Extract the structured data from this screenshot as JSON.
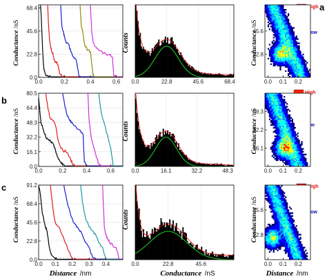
{
  "panel_labels": [
    "a",
    "b",
    "c"
  ],
  "axis_titles": {
    "conductance": "Conductance",
    "conductance_unit": "/nS",
    "counts": "Counts",
    "distance": "Distance",
    "distance_unit": "/nm"
  },
  "legend": {
    "high": "High",
    "low": "Low"
  },
  "colors": {
    "traces": [
      "#000000",
      "#e0191a",
      "#1b1bd0",
      "#8b8b00",
      "#d02ed6",
      "#1a9a9a"
    ],
    "fit": "#22c322",
    "envelope": "#e02020",
    "histogram": "#000000",
    "colormap": [
      "#00007f",
      "#0000ff",
      "#00a0ff",
      "#00ffff",
      "#7fff7f",
      "#ffff00",
      "#ff8000",
      "#ff0000",
      "#7f0000"
    ]
  },
  "chart_data": [
    {
      "id": "a-traces",
      "type": "line",
      "row": "a",
      "xlabel": "Distance /nm",
      "ylabel": "Conductance /nS",
      "xlim": [
        0,
        0.65
      ],
      "ylim": [
        0,
        71.4
      ],
      "xticks": [
        "0.0",
        "0.2",
        "0.4",
        "0.6"
      ],
      "xtick_values": [
        0,
        0.2,
        0.4,
        0.6
      ],
      "yticks": [
        "0.0",
        "22.8",
        "45.6",
        "68.4"
      ],
      "ytick_values": [
        0,
        22.8,
        45.6,
        68.4
      ],
      "series": [
        {
          "color": "#000000",
          "x": [
            0.015,
            0.02,
            0.025,
            0.03,
            0.035,
            0.04,
            0.05,
            0.06,
            0.08,
            0.1
          ],
          "y": [
            71,
            60,
            45,
            30,
            18,
            8,
            4,
            1.5,
            0.8,
            0.5
          ]
        },
        {
          "color": "#e0191a",
          "x": [
            0.07,
            0.075,
            0.08,
            0.085,
            0.09,
            0.1,
            0.11,
            0.12,
            0.13,
            0.14,
            0.15,
            0.16,
            0.18,
            0.2
          ],
          "y": [
            71,
            55,
            45,
            36,
            32,
            26,
            24,
            17,
            15,
            14,
            12,
            5,
            1,
            0.5
          ]
        },
        {
          "color": "#1b1bd0",
          "x": [
            0.17,
            0.18,
            0.19,
            0.2,
            0.21,
            0.23,
            0.25,
            0.27,
            0.29,
            0.31,
            0.33
          ],
          "y": [
            71,
            50,
            45,
            40,
            35,
            33,
            25,
            20,
            17,
            2,
            0.5
          ]
        },
        {
          "color": "#8b8b00",
          "x": [
            0.32,
            0.33,
            0.34,
            0.36,
            0.38,
            0.4,
            0.42,
            0.43
          ],
          "y": [
            71,
            50,
            45,
            30,
            27,
            25,
            2,
            0.5
          ]
        },
        {
          "color": "#d02ed6",
          "x": [
            0.4,
            0.41,
            0.42,
            0.44,
            0.46,
            0.48,
            0.5,
            0.52,
            0.55,
            0.57,
            0.58,
            0.6
          ],
          "y": [
            71,
            45,
            35,
            30,
            28,
            26,
            24,
            23,
            22,
            20,
            2,
            0.5
          ]
        }
      ]
    },
    {
      "id": "a-hist",
      "type": "bar",
      "row": "a",
      "xlabel": "",
      "ylabel": "Counts",
      "xlim": [
        0,
        71.4
      ],
      "xticks": [
        "0.0",
        "22.8",
        "45.6",
        "68.4"
      ],
      "xtick_values": [
        0,
        22.8,
        45.6,
        68.4
      ],
      "profile": {
        "peak_center": 22.8,
        "peak_height": 0.45,
        "peak_width": 9.5,
        "decay_amp": 1.0,
        "decay_const": 4.0,
        "tail": 0.09,
        "tail_slope": 0.0008,
        "noise": 0.03
      },
      "fit": {
        "center": 22.8,
        "height": 0.43,
        "width": 8.5
      }
    },
    {
      "id": "a-map",
      "type": "heatmap",
      "row": "a",
      "ylabel": "Conductance /nS",
      "xlim": [
        -0.02,
        0.28
      ],
      "ylim": [
        0,
        71.4
      ],
      "xticks": [
        "0.0",
        "0.1",
        "0.2"
      ],
      "xtick_values": [
        0,
        0.1,
        0.2
      ],
      "yticks": [
        "22.8",
        "45.6"
      ],
      "ytick_values": [
        22.8,
        45.6
      ],
      "band": {
        "x_at_top": 0.03,
        "x_at_bottom": 0.22,
        "spread": 0.05,
        "hot_x": 0.08,
        "hot_y": 22.8
      }
    },
    {
      "id": "b-traces",
      "type": "line",
      "row": "b",
      "xlabel": "Distance /nm",
      "ylabel": "Conductance /nS",
      "xlim": [
        0,
        0.7
      ],
      "ylim": [
        0,
        80.5
      ],
      "xticks": [
        "0.0",
        "0.2",
        "0.4",
        "0.6"
      ],
      "xtick_values": [
        0,
        0.2,
        0.4,
        0.6
      ],
      "yticks": [
        "0.0",
        "16.1",
        "32.2",
        "48.3",
        "64.4",
        "80.5"
      ],
      "ytick_values": [
        0,
        16.1,
        32.2,
        48.3,
        64.4,
        80.5
      ],
      "series": [
        {
          "color": "#000000",
          "x": [
            0.0,
            0.02,
            0.04,
            0.06,
            0.08,
            0.1,
            0.12,
            0.14,
            0.16,
            0.18,
            0.2,
            0.22
          ],
          "y": [
            75,
            48,
            40,
            32,
            30,
            28,
            25,
            18,
            10,
            5,
            2,
            0.5
          ]
        },
        {
          "color": "#e0191a",
          "x": [
            0.06,
            0.08,
            0.1,
            0.12,
            0.14,
            0.16,
            0.18,
            0.2,
            0.24,
            0.26,
            0.28,
            0.3
          ],
          "y": [
            80,
            62,
            52,
            50,
            45,
            30,
            22,
            18,
            15,
            10,
            3,
            0.5
          ]
        },
        {
          "color": "#1b1bd0",
          "x": [
            0.2,
            0.22,
            0.24,
            0.26,
            0.28,
            0.3,
            0.34,
            0.37,
            0.38,
            0.4
          ],
          "y": [
            80,
            65,
            55,
            50,
            48,
            45,
            40,
            35,
            5,
            0.5
          ]
        },
        {
          "color": "#d02ed6",
          "x": [
            0.41,
            0.42,
            0.44,
            0.46,
            0.48,
            0.5,
            0.52
          ],
          "y": [
            80,
            50,
            30,
            20,
            10,
            3,
            0.5
          ]
        },
        {
          "color": "#1a9a9a",
          "x": [
            0.5,
            0.52,
            0.54,
            0.56,
            0.58,
            0.6,
            0.62
          ],
          "y": [
            80,
            60,
            50,
            40,
            30,
            20,
            0.5
          ]
        }
      ]
    },
    {
      "id": "b-hist",
      "type": "bar",
      "row": "b",
      "xlabel": "",
      "ylabel": "Counts",
      "xlim": [
        0,
        51.5
      ],
      "xticks": [
        "0.0",
        "16.1",
        "32.2",
        "48.3"
      ],
      "xtick_values": [
        0,
        16.1,
        32.2,
        48.3
      ],
      "profile": {
        "peak_center": 16.1,
        "peak_height": 0.42,
        "peak_width": 6.0,
        "decay_amp": 1.0,
        "decay_const": 2.6,
        "tail": 0.08,
        "tail_slope": 0.0012,
        "noise": 0.03
      },
      "fit": {
        "center": 16.1,
        "height": 0.4,
        "width": 5.5
      }
    },
    {
      "id": "b-map",
      "type": "heatmap",
      "row": "b",
      "ylabel": "Conductance /nS",
      "xlim": [
        -0.02,
        0.28
      ],
      "ylim": [
        0,
        64.4
      ],
      "xticks": [
        "0.0",
        "0.1",
        "0.2"
      ],
      "xtick_values": [
        0,
        0.1,
        0.2
      ],
      "yticks": [
        "16.1",
        "32.2",
        "48.3"
      ],
      "ytick_values": [
        16.1,
        32.2,
        48.3
      ],
      "band": {
        "x_at_top": 0.02,
        "x_at_bottom": 0.2,
        "spread": 0.05,
        "hot_x": 0.1,
        "hot_y": 16.1
      }
    },
    {
      "id": "c-traces",
      "type": "line",
      "row": "c",
      "xlabel": "Distance /nm",
      "ylabel": "Conductance /nS",
      "xlim": [
        0,
        0.5
      ],
      "ylim": [
        0,
        91.2
      ],
      "xticks": [
        "0.0",
        "0.1",
        "0.2",
        "0.3",
        "0.4"
      ],
      "xtick_values": [
        0,
        0.1,
        0.2,
        0.3,
        0.4
      ],
      "yticks": [
        "0.0",
        "22.8",
        "45.6",
        "68.4",
        "91.2"
      ],
      "ytick_values": [
        0,
        22.8,
        45.6,
        68.4,
        91.2
      ],
      "series": [
        {
          "color": "#000000",
          "x": [
            0.0,
            0.01,
            0.02,
            0.03,
            0.04,
            0.05,
            0.06,
            0.07,
            0.08,
            0.1,
            0.12
          ],
          "y": [
            90,
            80,
            60,
            50,
            40,
            35,
            20,
            10,
            5,
            1,
            0.5
          ]
        },
        {
          "color": "#e0191a",
          "x": [
            0.07,
            0.09,
            0.1,
            0.12,
            0.14,
            0.16,
            0.18,
            0.2,
            0.22
          ],
          "y": [
            91,
            55,
            45,
            40,
            30,
            20,
            10,
            1,
            0.5
          ]
        },
        {
          "color": "#1b1bd0",
          "x": [
            0.15,
            0.17,
            0.19,
            0.21,
            0.23,
            0.25,
            0.27,
            0.3,
            0.32,
            0.34
          ],
          "y": [
            91,
            70,
            55,
            45,
            40,
            35,
            25,
            15,
            3,
            0.5
          ]
        },
        {
          "color": "#1a9a9a",
          "x": [
            0.25,
            0.26,
            0.28,
            0.3,
            0.32,
            0.34,
            0.36,
            0.38,
            0.4
          ],
          "y": [
            91,
            70,
            50,
            40,
            35,
            30,
            20,
            15,
            0.5
          ]
        },
        {
          "color": "#d02ed6",
          "x": [
            0.38,
            0.39,
            0.4,
            0.41,
            0.42,
            0.43,
            0.44,
            0.46,
            0.48
          ],
          "y": [
            91,
            40,
            30,
            25,
            22,
            20,
            18,
            15,
            0.5
          ]
        }
      ]
    },
    {
      "id": "c-hist",
      "type": "bar",
      "row": "c",
      "xlabel": "Conductance /nS",
      "ylabel": "Counts",
      "xlim": [
        0,
        68.4
      ],
      "xticks": [
        "0.0",
        "22.8",
        "45.6"
      ],
      "xtick_values": [
        0,
        22.8,
        45.6
      ],
      "profile": {
        "peak_center": 22.8,
        "peak_height": 0.42,
        "peak_width": 12.0,
        "decay_amp": 1.0,
        "decay_const": 3.0,
        "tail": 0.06,
        "tail_slope": 0.0,
        "noise": 0.05
      },
      "fit": {
        "center": 22.8,
        "height": 0.38,
        "width": 13.0
      }
    },
    {
      "id": "c-map",
      "type": "heatmap",
      "row": "c",
      "xlabel": "Distance /nm",
      "ylabel": "Conductance /nS",
      "xlim": [
        -0.02,
        0.28
      ],
      "ylim": [
        0,
        68.4
      ],
      "xticks": [
        "0.0",
        "0.1",
        "0.2"
      ],
      "xtick_values": [
        0,
        0.1,
        0.2
      ],
      "yticks": [
        "22.8",
        "45.6"
      ],
      "ytick_values": [
        22.8,
        45.6
      ],
      "band": {
        "x_at_top": 0.02,
        "x_at_bottom": 0.2,
        "spread": 0.045,
        "hot_x": 0.03,
        "hot_y": 20
      }
    }
  ]
}
